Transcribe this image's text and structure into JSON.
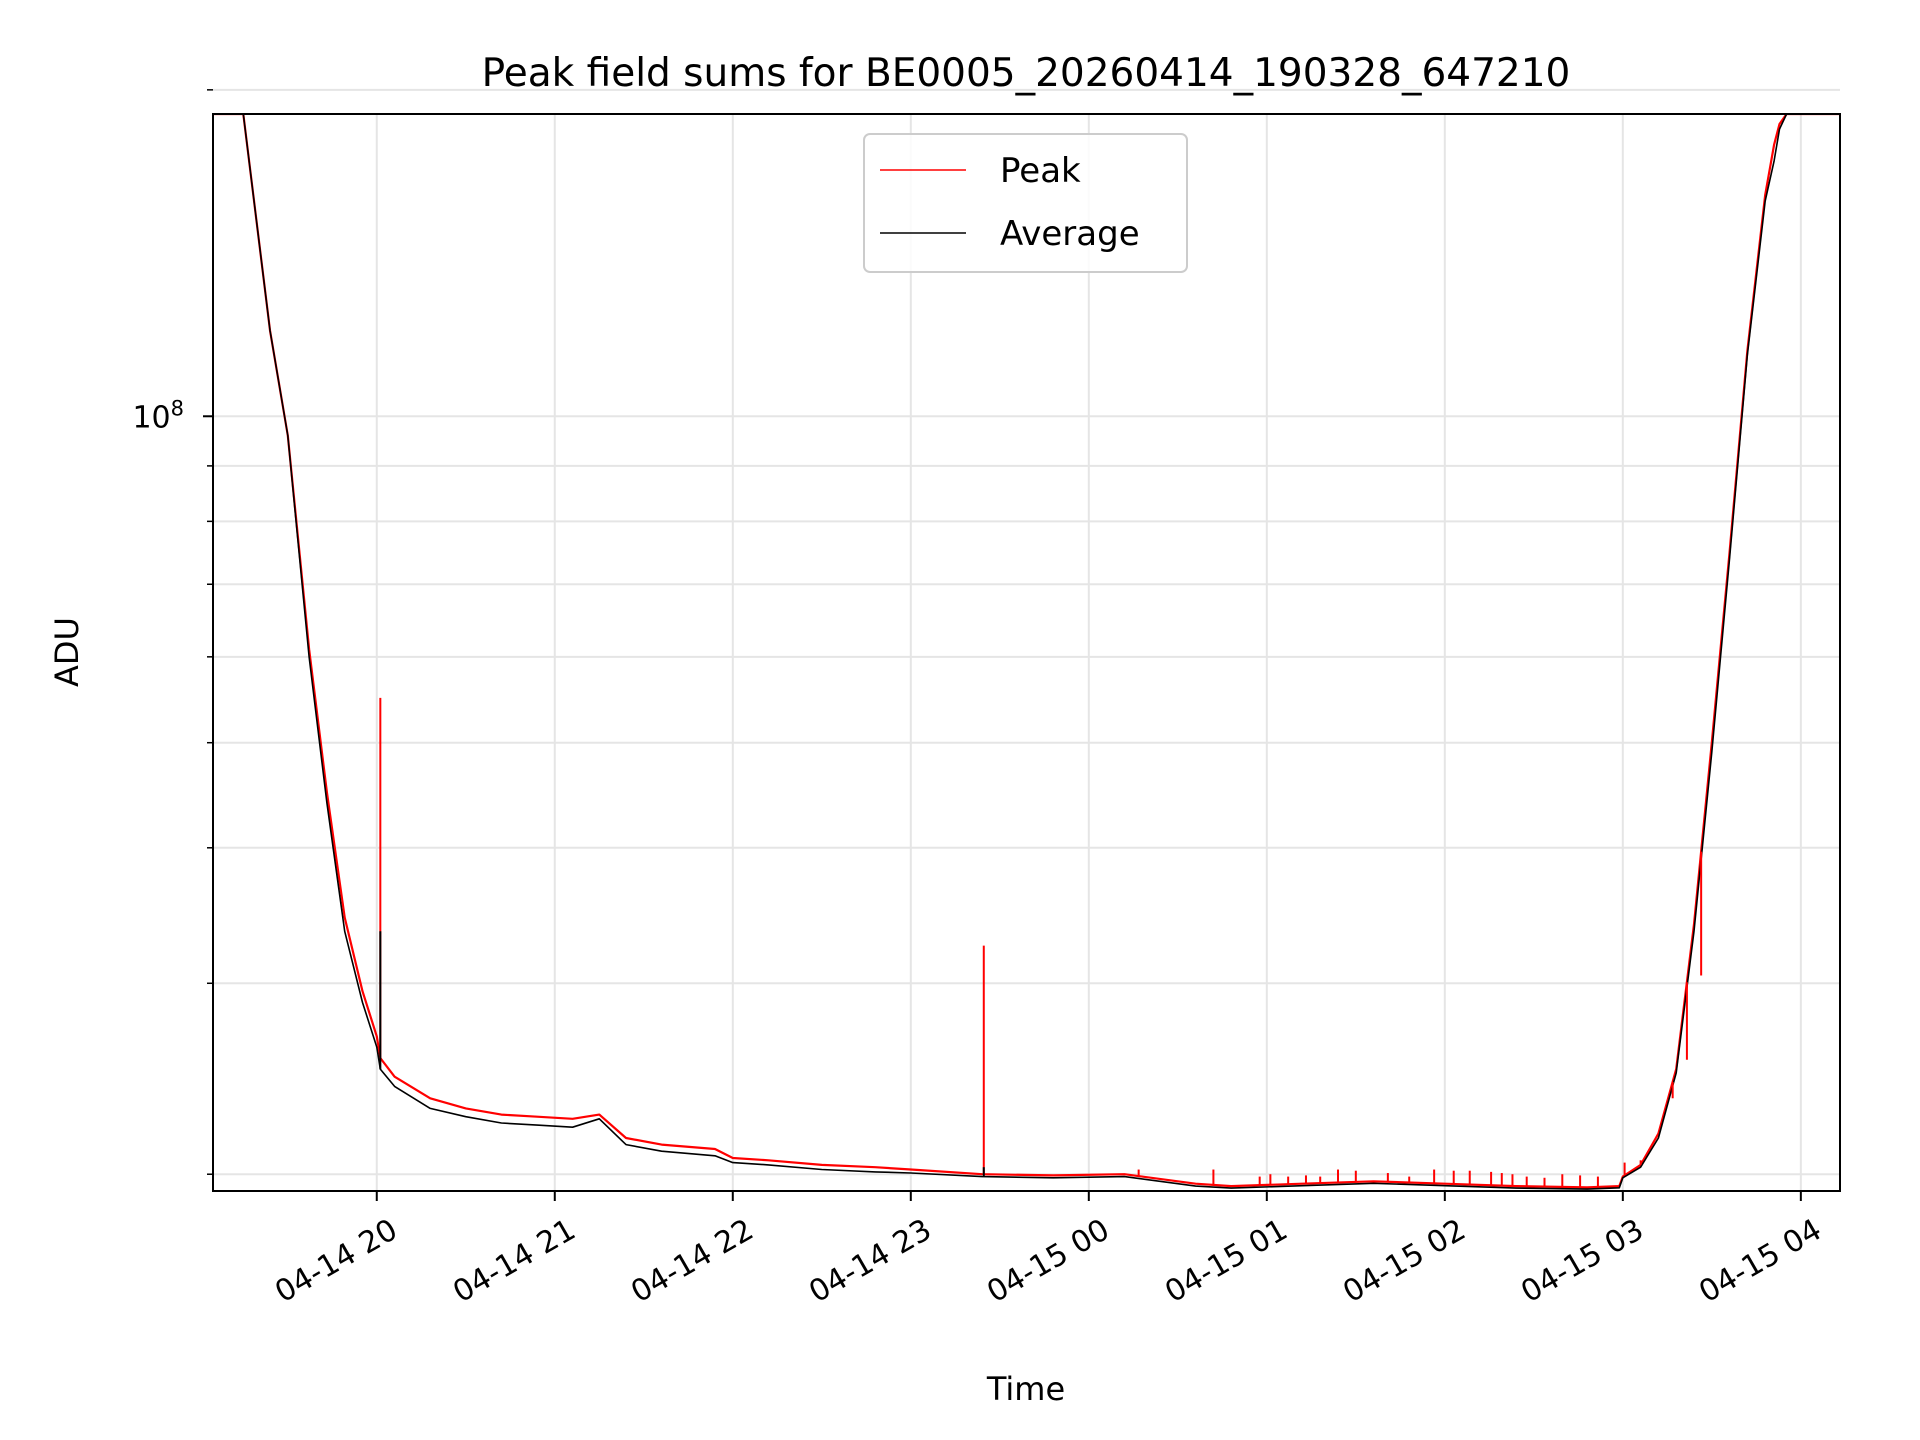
{
  "chart_data": {
    "type": "line",
    "title": "Peak field sums for BE0005_20260414_190328_647210",
    "xlabel": "Time",
    "ylabel": "ADU",
    "yscale": "log",
    "grid": true,
    "legend_position": "top-center",
    "xlim": [
      19.08,
      28.22
    ],
    "ylim": [
      19300000,
      190000000
    ],
    "x_unit": "hours since 2026-04-14 00:00",
    "x_ticks": [
      20,
      21,
      22,
      23,
      24,
      25,
      26,
      27,
      28
    ],
    "x_tick_labels": [
      "04-14 20",
      "04-14 21",
      "04-14 22",
      "04-14 23",
      "04-15 00",
      "04-15 01",
      "04-15 02",
      "04-15 03",
      "04-15 04"
    ],
    "y_major_tick": {
      "value": 100000000,
      "base": "10",
      "exponent": "8"
    },
    "y_minor_ticks": [
      20000000,
      30000000,
      40000000,
      50000000,
      60000000,
      70000000,
      80000000,
      90000000,
      200000000
    ],
    "series": [
      {
        "name": "Peak",
        "color": "#ff0000",
        "x": [
          19.08,
          19.25,
          19.4,
          19.5,
          19.62,
          19.72,
          19.82,
          19.92,
          20.0,
          20.02,
          20.1,
          20.3,
          20.5,
          20.7,
          20.9,
          21.1,
          21.25,
          21.4,
          21.6,
          21.9,
          22.0,
          22.2,
          22.5,
          22.8,
          23.0,
          23.4,
          23.8,
          24.2,
          24.6,
          24.8,
          25.2,
          25.6,
          26.0,
          26.4,
          26.8,
          26.98,
          27.0,
          27.1,
          27.2,
          27.3,
          27.4,
          27.5,
          27.6,
          27.7,
          27.8,
          27.85,
          27.88,
          27.92,
          28.0,
          28.22
        ],
        "values": [
          190000000,
          190000000,
          120000000,
          96000000,
          61000000,
          45000000,
          34500000,
          29500000,
          26800000,
          25600000,
          24600000,
          23500000,
          23000000,
          22700000,
          22600000,
          22500000,
          22700000,
          21600000,
          21300000,
          21100000,
          20700000,
          20600000,
          20400000,
          20300000,
          20200000,
          20000000,
          19950000,
          20000000,
          19600000,
          19500000,
          19600000,
          19700000,
          19600000,
          19500000,
          19450000,
          19500000,
          19900000,
          20400000,
          21800000,
          25000000,
          34000000,
          50000000,
          75000000,
          115000000,
          160000000,
          178000000,
          186000000,
          190000000,
          190000000,
          190000000
        ]
      },
      {
        "name": "Average",
        "color": "#000000",
        "x": [
          19.08,
          19.25,
          19.4,
          19.5,
          19.62,
          19.72,
          19.82,
          19.92,
          20.0,
          20.02,
          20.1,
          20.3,
          20.5,
          20.7,
          20.9,
          21.1,
          21.25,
          21.4,
          21.6,
          21.9,
          22.0,
          22.2,
          22.5,
          22.8,
          23.0,
          23.4,
          23.8,
          24.2,
          24.6,
          24.8,
          25.2,
          25.6,
          26.0,
          26.4,
          26.8,
          26.98,
          27.0,
          27.1,
          27.2,
          27.3,
          27.4,
          27.5,
          27.6,
          27.7,
          27.8,
          27.85,
          27.88,
          27.92,
          28.0,
          28.22
        ],
        "values": [
          190000000,
          190000000,
          120000000,
          96000000,
          60000000,
          44000000,
          33500000,
          28800000,
          26200000,
          25000000,
          24100000,
          23000000,
          22600000,
          22300000,
          22200000,
          22100000,
          22500000,
          21300000,
          21000000,
          20800000,
          20500000,
          20400000,
          20200000,
          20100000,
          20050000,
          19900000,
          19850000,
          19900000,
          19500000,
          19420000,
          19520000,
          19620000,
          19520000,
          19420000,
          19380000,
          19430000,
          19850000,
          20300000,
          21600000,
          24800000,
          33500000,
          49000000,
          74000000,
          114000000,
          158000000,
          172000000,
          184000000,
          190000000,
          190000000,
          190000000
        ]
      }
    ],
    "peak_spikes": [
      {
        "x": 20.02,
        "value": 55000000
      },
      {
        "x": 23.41,
        "value": 32500000
      },
      {
        "x": 24.28,
        "value": 20200000
      },
      {
        "x": 24.7,
        "value": 20200000
      },
      {
        "x": 24.96,
        "value": 19900000
      },
      {
        "x": 25.02,
        "value": 20000000
      },
      {
        "x": 25.12,
        "value": 19900000
      },
      {
        "x": 25.22,
        "value": 19950000
      },
      {
        "x": 25.3,
        "value": 19900000
      },
      {
        "x": 25.4,
        "value": 20200000
      },
      {
        "x": 25.5,
        "value": 20150000
      },
      {
        "x": 25.68,
        "value": 20050000
      },
      {
        "x": 25.8,
        "value": 19900000
      },
      {
        "x": 25.94,
        "value": 20200000
      },
      {
        "x": 26.05,
        "value": 20150000
      },
      {
        "x": 26.14,
        "value": 20150000
      },
      {
        "x": 26.26,
        "value": 20100000
      },
      {
        "x": 26.32,
        "value": 20050000
      },
      {
        "x": 26.38,
        "value": 20000000
      },
      {
        "x": 26.46,
        "value": 19900000
      },
      {
        "x": 26.56,
        "value": 19850000
      },
      {
        "x": 26.66,
        "value": 20000000
      },
      {
        "x": 26.76,
        "value": 19950000
      },
      {
        "x": 26.86,
        "value": 19900000
      },
      {
        "x": 27.01,
        "value": 20500000
      },
      {
        "x": 27.1,
        "value": 20600000
      },
      {
        "x": 27.28,
        "value": 23500000
      },
      {
        "x": 27.36,
        "value": 25500000
      },
      {
        "x": 27.44,
        "value": 30500000
      }
    ],
    "average_spikes": [
      {
        "x": 20.02,
        "value": 33500000
      },
      {
        "x": 23.41,
        "value": 20300000
      }
    ],
    "legend": [
      {
        "label": "Peak",
        "color": "#ff0000"
      },
      {
        "label": "Average",
        "color": "#000000"
      }
    ]
  }
}
